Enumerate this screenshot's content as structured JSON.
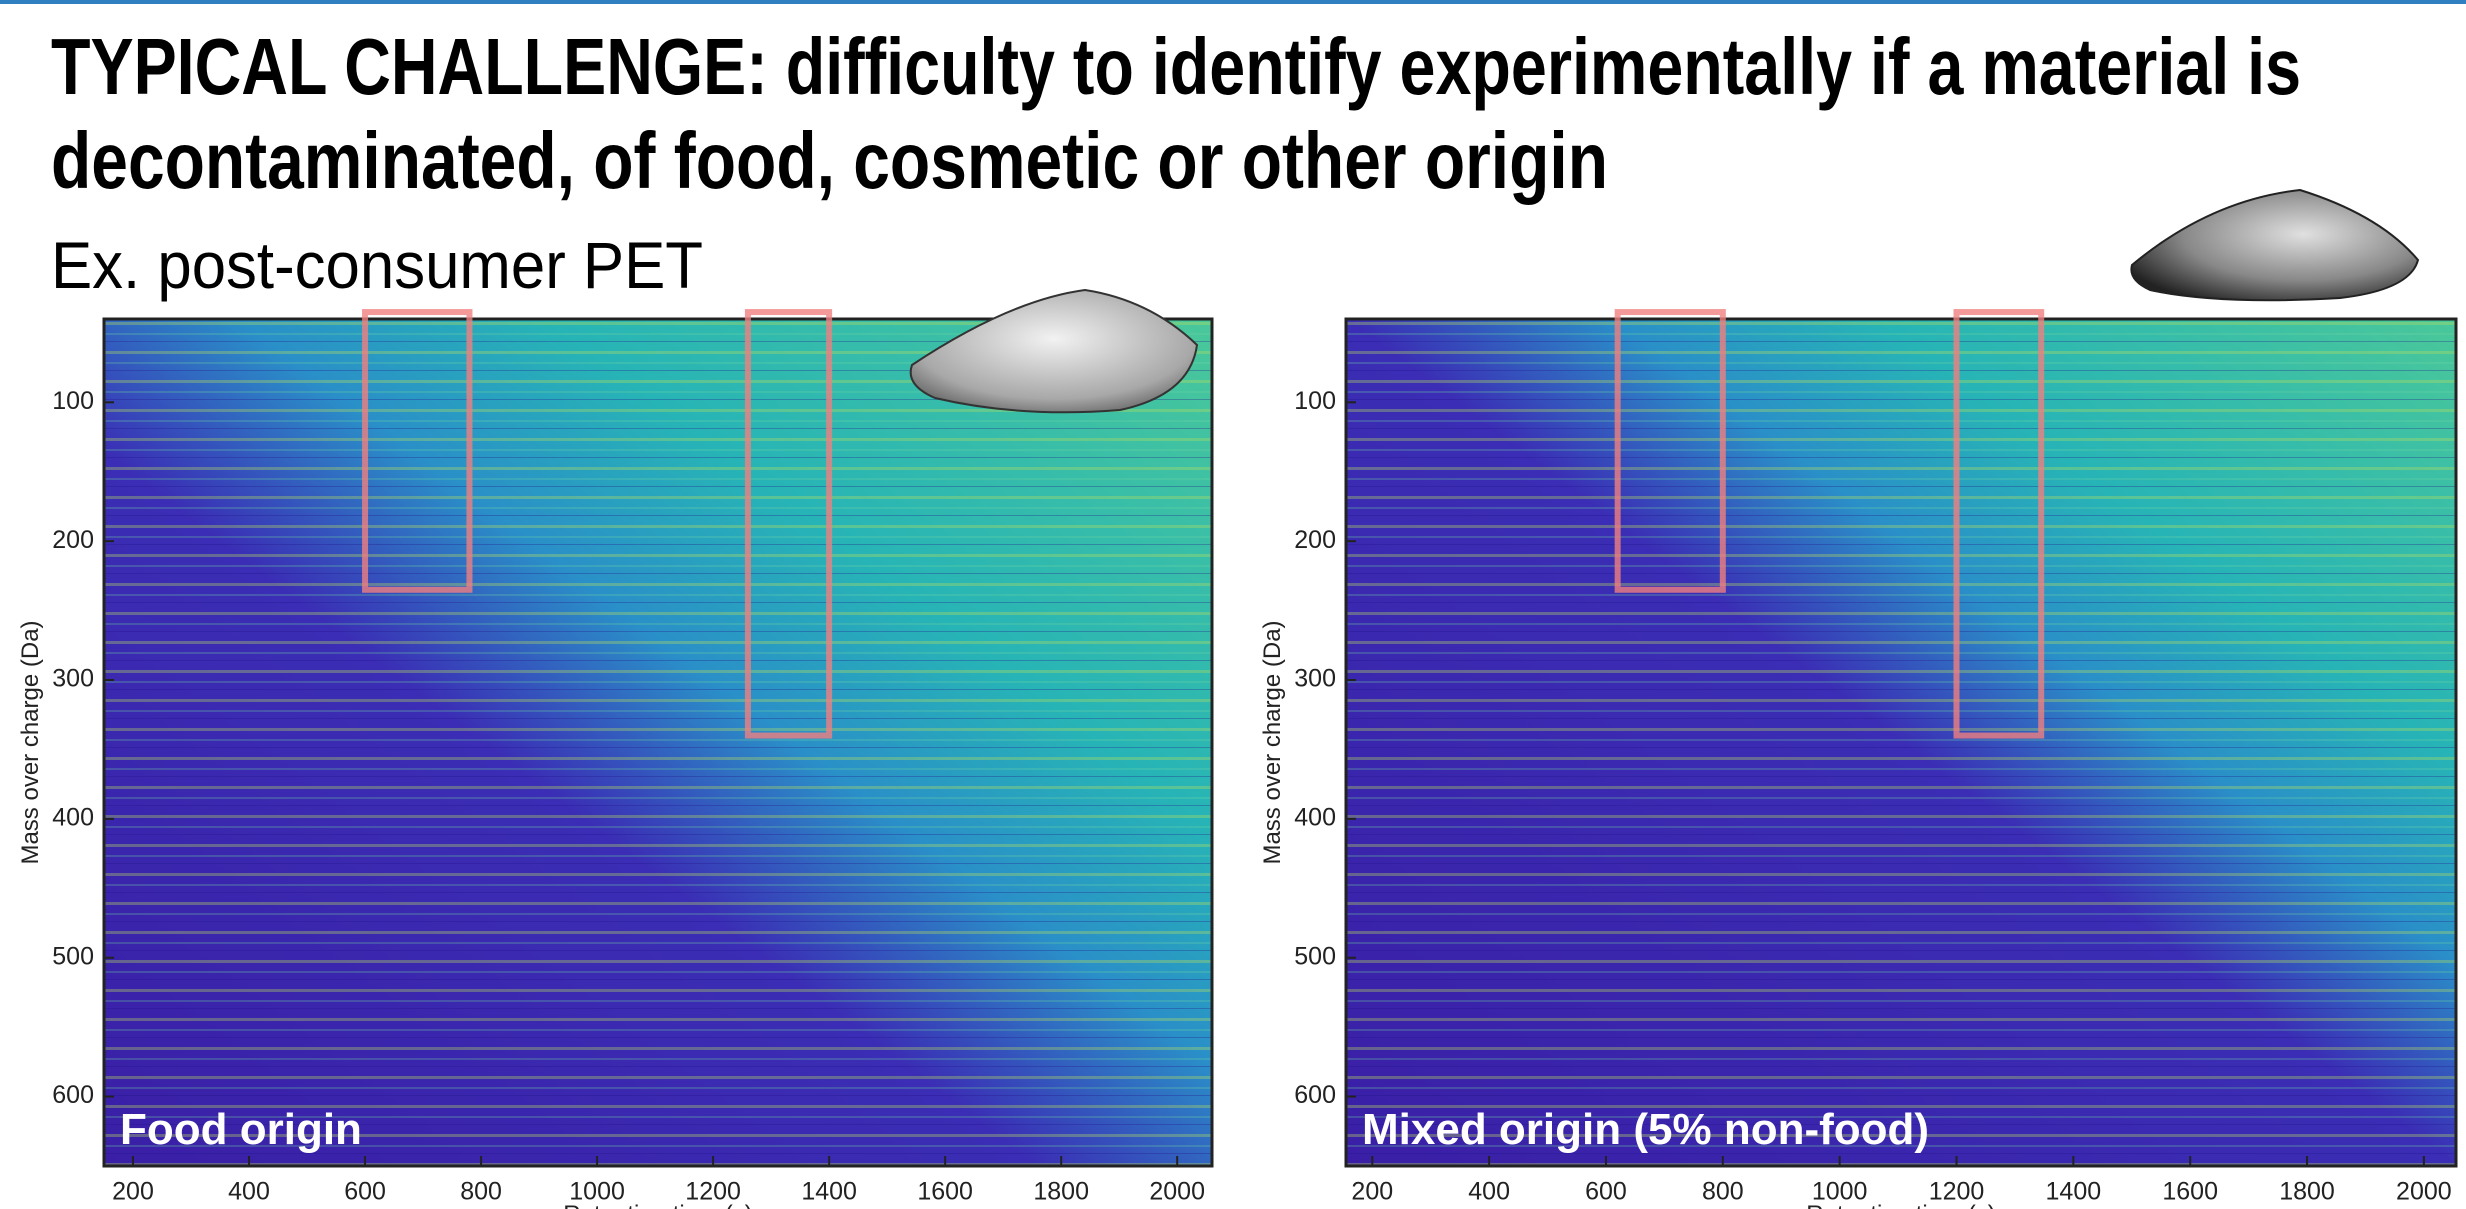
{
  "title": [
    "TYPICAL CHALLENGE: difficulty to identify experimentally if a material is",
    "decontaminated, of food, cosmetic or other origin"
  ],
  "subtitle": "Ex. post-consumer PET",
  "chart_data": [
    {
      "type": "heatmap",
      "panel_label": "Food origin",
      "xlabel": "Retention time (s)",
      "ylabel": "Mass over charge (Da)",
      "xlim": [
        150,
        2060
      ],
      "xticks": [
        200,
        400,
        600,
        800,
        1000,
        1200,
        1400,
        1600,
        1800,
        2000
      ],
      "ylim": [
        40,
        650
      ],
      "y_reversed": true,
      "yticks": [
        100,
        200,
        300,
        400,
        500,
        600
      ],
      "highlight_color": "#f07f7f",
      "highlight_regions": [
        {
          "x": [
            600,
            780
          ],
          "y": [
            35,
            235
          ]
        },
        {
          "x": [
            1260,
            1400
          ],
          "y": [
            35,
            340
          ]
        }
      ]
    },
    {
      "type": "heatmap",
      "panel_label": "Mixed origin (5% non-food)",
      "xlabel": "Retention time (s)",
      "ylabel": "Mass over charge (Da)",
      "xlim": [
        155,
        2055
      ],
      "xticks": [
        200,
        400,
        600,
        800,
        1000,
        1200,
        1400,
        1600,
        1800,
        2000
      ],
      "ylim": [
        40,
        650
      ],
      "y_reversed": true,
      "yticks": [
        100,
        200,
        300,
        400,
        500,
        600
      ],
      "highlight_color": "#f07f7f",
      "highlight_regions": [
        {
          "x": [
            620,
            800
          ],
          "y": [
            35,
            235
          ]
        },
        {
          "x": [
            1200,
            1345
          ],
          "y": [
            35,
            340
          ]
        }
      ]
    }
  ]
}
